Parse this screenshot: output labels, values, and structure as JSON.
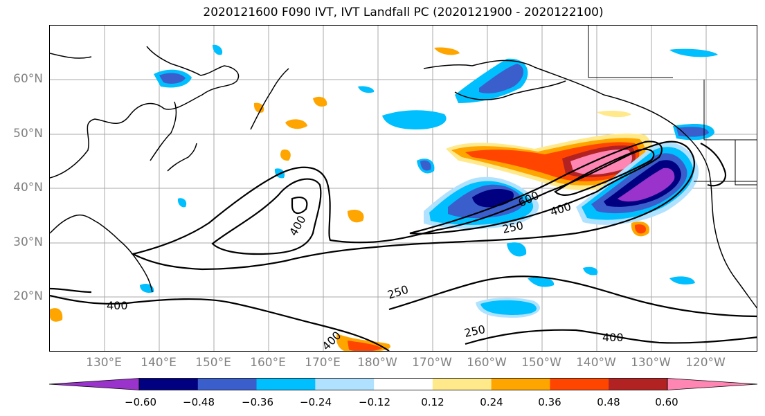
{
  "title": "2020121600 F090 IVT, IVT Landfall PC (2020121900 - 2020122100)",
  "lat_labels": [
    "60°N",
    "50°N",
    "40°N",
    "30°N",
    "20°N"
  ],
  "lon_labels": [
    "130°E",
    "140°E",
    "150°E",
    "160°E",
    "170°E",
    "180°W",
    "170°W",
    "160°W",
    "150°W",
    "140°W",
    "130°W",
    "120°W"
  ],
  "contour_labels": {
    "c600": "600",
    "c400_ne": "400",
    "c250_ne": "250",
    "c400_w": "400",
    "c250_s": "250",
    "c400_sw": "400",
    "c250_se": "250",
    "c400_se": "400",
    "c400_sx": "400"
  },
  "colorbar": {
    "tick_labels": [
      "−0.60",
      "−0.48",
      "−0.36",
      "−0.24",
      "−0.12",
      "0.12",
      "0.24",
      "0.36",
      "0.48",
      "0.60"
    ],
    "colors": [
      "#9933cc",
      "#000080",
      "#3a5fcd",
      "#00bfff",
      "#b0e2ff",
      "#ffffff",
      "#ffe98a",
      "#ffa500",
      "#ff4500",
      "#b22222",
      "#ff85b3"
    ]
  }
}
